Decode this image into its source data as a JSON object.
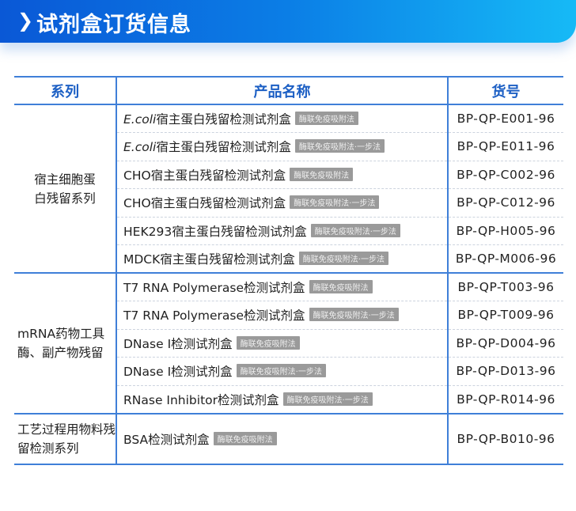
{
  "header": {
    "title": "试剂盒订货信息",
    "icon": "chevron-right-icon"
  },
  "table": {
    "columns": [
      "系列",
      "产品名称",
      "货号"
    ],
    "groups": [
      {
        "series": "宿主细胞蛋白残留系列",
        "rows": [
          {
            "prefix": "E.coli",
            "name": "宿主蛋白残留检测试剂盒",
            "tag": "酶联免疫吸附法",
            "cat": "BP-QP-E001-96"
          },
          {
            "prefix": "E.coli",
            "name": "宿主蛋白残留检测试剂盒",
            "tag": "酶联免疫吸附法·一步法",
            "cat": "BP-QP-E011-96"
          },
          {
            "prefix": "",
            "name": "CHO宿主蛋白残留检测试剂盒",
            "tag": "酶联免疫吸附法",
            "cat": "BP-QP-C002-96"
          },
          {
            "prefix": "",
            "name": "CHO宿主蛋白残留检测试剂盒",
            "tag": "酶联免疫吸附法·一步法",
            "cat": "BP-QP-C012-96"
          },
          {
            "prefix": "",
            "name": "HEK293宿主蛋白残留检测试剂盒",
            "tag": "酶联免疫吸附法·一步法",
            "cat": "BP-QP-H005-96"
          },
          {
            "prefix": "",
            "name": "MDCK宿主蛋白残留检测试剂盒",
            "tag": "酶联免疫吸附法·一步法",
            "cat": "BP-QP-M006-96"
          }
        ]
      },
      {
        "series": "mRNA药物工具酶、副产物残留",
        "rows": [
          {
            "prefix": "",
            "name": "T7 RNA Polymerase检测试剂盒",
            "tag": "酶联免疫吸附法",
            "cat": "BP-QP-T003-96"
          },
          {
            "prefix": "",
            "name": "T7 RNA Polymerase检测试剂盒",
            "tag": "酶联免疫吸附法·一步法",
            "cat": "BP-QP-T009-96"
          },
          {
            "prefix": "",
            "name": "DNase I检测试剂盒",
            "tag": "酶联免疫吸附法",
            "cat": "BP-QP-D004-96"
          },
          {
            "prefix": "",
            "name": "DNase I检测试剂盒",
            "tag": "酶联免疫吸附法·一步法",
            "cat": "BP-QP-D013-96"
          },
          {
            "prefix": "",
            "name": "RNase Inhibitor检测试剂盒",
            "tag": "酶联免疫吸附法·一步法",
            "cat": "BP-QP-R014-96"
          }
        ]
      },
      {
        "series": "工艺过程用物料残留检测系列",
        "rows": [
          {
            "prefix": "",
            "name": "BSA检测试剂盒",
            "tag": "酶联免疫吸附法",
            "cat": "BP-QP-B010-96"
          }
        ]
      }
    ]
  }
}
